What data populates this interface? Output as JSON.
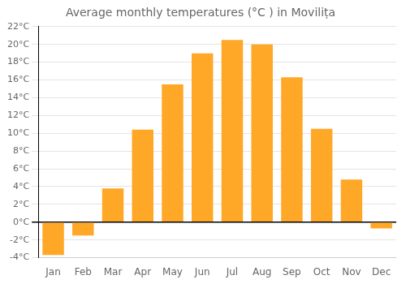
{
  "chart_data": {
    "type": "bar",
    "title": "Average monthly temperatures (°C ) in Moviliṭa",
    "categories": [
      "Jan",
      "Feb",
      "Mar",
      "Apr",
      "May",
      "Jun",
      "Jul",
      "Aug",
      "Sep",
      "Oct",
      "Nov",
      "Dec"
    ],
    "values": [
      -3.7,
      -1.5,
      3.8,
      10.4,
      15.5,
      19.0,
      20.5,
      20.0,
      16.3,
      10.5,
      4.8,
      -0.7
    ],
    "color": "#FFA726",
    "ylim": [
      -4,
      22
    ],
    "yticks": [
      {
        "value": -4,
        "label": "-4°C"
      },
      {
        "value": -2,
        "label": "-2°C"
      },
      {
        "value": 0,
        "label": "0°C"
      },
      {
        "value": 2,
        "label": "2°C"
      },
      {
        "value": 4,
        "label": "4°C"
      },
      {
        "value": 6,
        "label": "6°C"
      },
      {
        "value": 8,
        "label": "8°C"
      },
      {
        "value": 10,
        "label": "10°C"
      },
      {
        "value": 12,
        "label": "12°C"
      },
      {
        "value": 14,
        "label": "14°C"
      },
      {
        "value": 16,
        "label": "16°C"
      },
      {
        "value": 18,
        "label": "18°C"
      },
      {
        "value": 20,
        "label": "20°C"
      },
      {
        "value": 22,
        "label": "22°C"
      }
    ],
    "grid": true
  }
}
